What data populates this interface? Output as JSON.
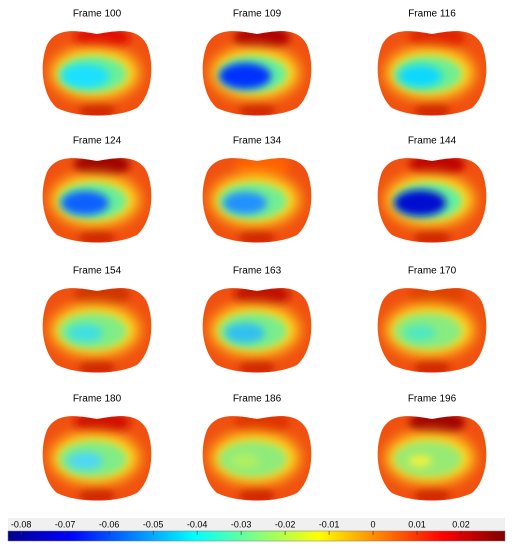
{
  "panels": [
    {
      "title": "Frame 100"
    },
    {
      "title": "Frame 109"
    },
    {
      "title": "Frame 116"
    },
    {
      "title": "Frame 124"
    },
    {
      "title": "Frame 134"
    },
    {
      "title": "Frame 144"
    },
    {
      "title": "Frame 154"
    },
    {
      "title": "Frame 163"
    },
    {
      "title": "Frame 170"
    },
    {
      "title": "Frame 180"
    },
    {
      "title": "Frame 186"
    },
    {
      "title": "Frame 196"
    }
  ],
  "colorbar": {
    "colormap": "jet",
    "clim": [
      -0.083,
      0.03
    ],
    "ticks": [
      -0.08,
      -0.07,
      -0.06,
      -0.05,
      -0.04,
      -0.03,
      -0.02,
      -0.01,
      0,
      0.01,
      0.02
    ]
  }
}
